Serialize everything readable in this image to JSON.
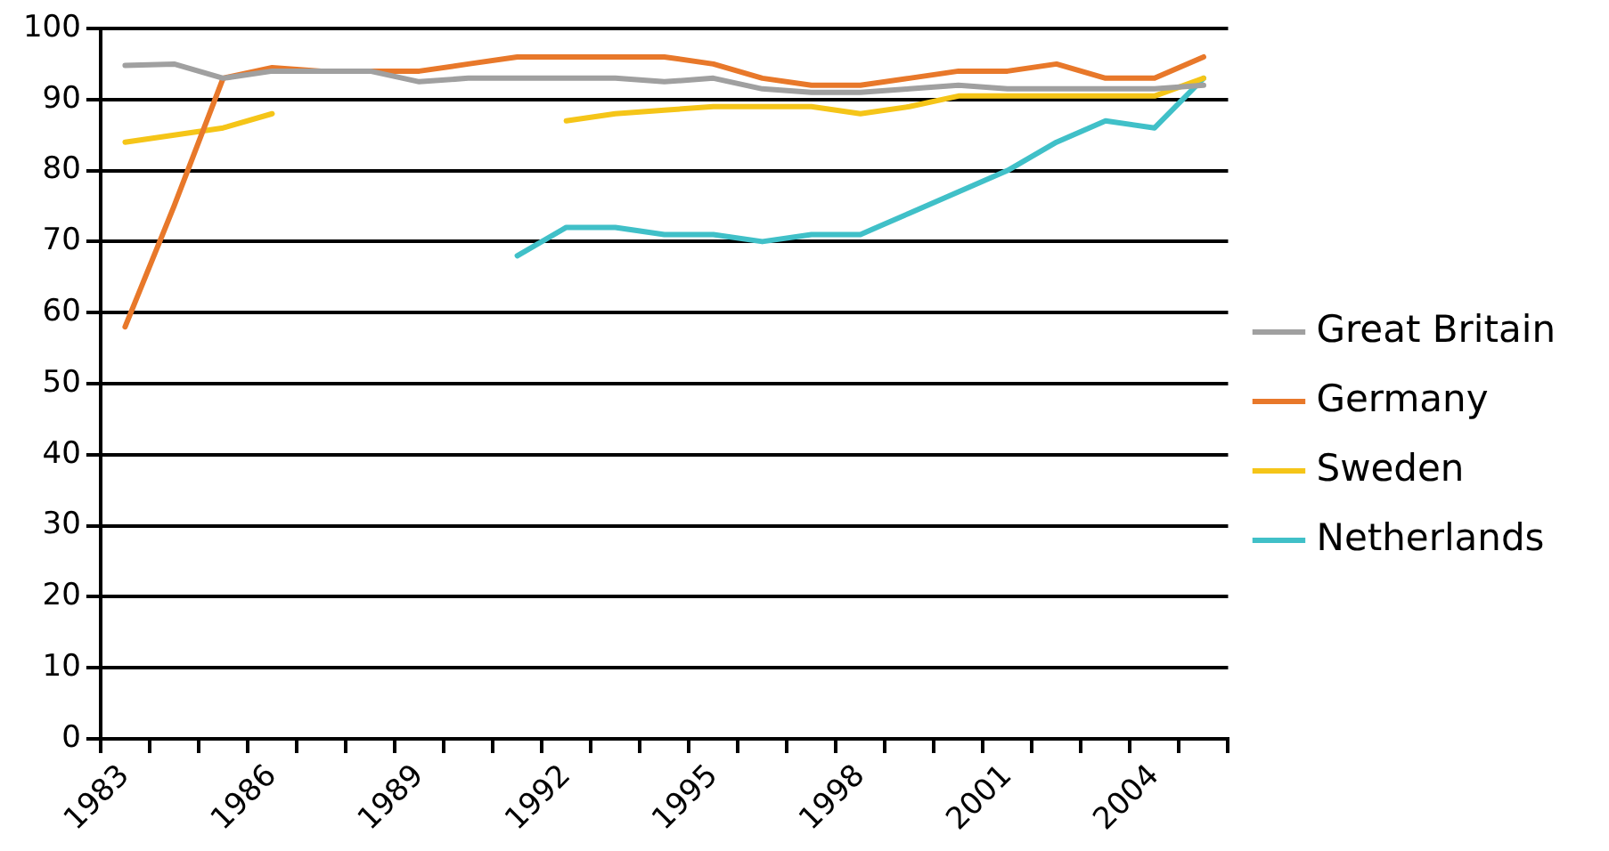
{
  "chart_data": {
    "type": "line",
    "categories": [
      "1983",
      null,
      null,
      "1986",
      null,
      null,
      "1989",
      null,
      null,
      "1992",
      null,
      null,
      "1995",
      null,
      null,
      "1998",
      null,
      null,
      "2001",
      null,
      null,
      "2004",
      null
    ],
    "series": [
      {
        "name": "Great Britain",
        "color": "#a0a0a0",
        "values": [
          94.8,
          95,
          93,
          94,
          94,
          94,
          92.5,
          93,
          93,
          93,
          93,
          92.5,
          93,
          91.5,
          91,
          91,
          91.5,
          92,
          91.5,
          91.5,
          91.5,
          91.5,
          92
        ]
      },
      {
        "name": "Germany",
        "color": "#e8782a",
        "values": [
          58,
          75,
          93,
          94.5,
          94,
          94,
          94,
          95,
          96,
          96,
          96,
          96,
          95,
          93,
          92,
          92,
          93,
          94,
          94,
          95,
          93,
          93,
          96
        ]
      },
      {
        "name": "Sweden",
        "color": "#f5c518",
        "values": [
          84,
          85,
          86,
          88,
          null,
          null,
          null,
          null,
          null,
          87,
          88,
          88.5,
          89,
          89,
          89,
          88,
          89,
          90.5,
          90.5,
          90.5,
          90.5,
          90.5,
          93
        ]
      },
      {
        "name": "Netherlands",
        "color": "#40c0c8",
        "values": [
          null,
          null,
          null,
          null,
          null,
          null,
          null,
          null,
          68,
          72,
          72,
          71,
          71,
          70,
          71,
          71,
          74,
          77,
          80,
          84,
          87,
          86,
          93
        ]
      }
    ],
    "ylim": [
      0,
      100
    ],
    "yticks": [
      0,
      10,
      20,
      30,
      40,
      50,
      60,
      70,
      80,
      90,
      100
    ],
    "grid": "y",
    "legend": "right",
    "marker": "none",
    "line_style": "solid"
  }
}
